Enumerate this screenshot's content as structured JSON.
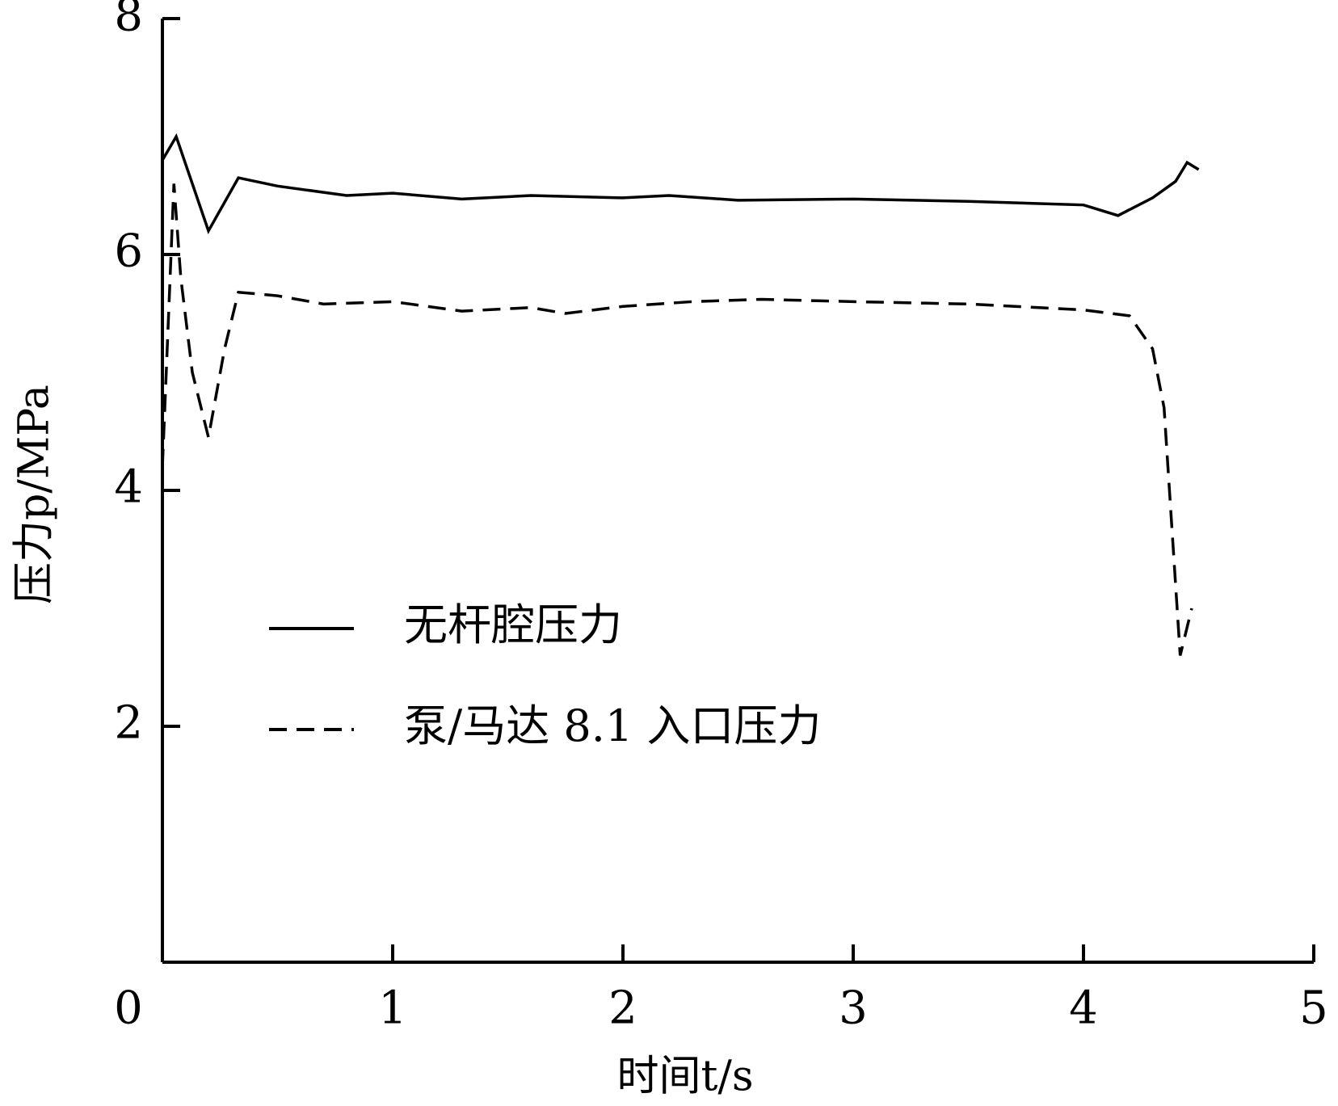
{
  "chart_data": {
    "type": "line",
    "xlabel": "时间t/s",
    "ylabel": "压力p/MPa",
    "xlim": [
      0,
      5
    ],
    "ylim": [
      0,
      8
    ],
    "xticks": [
      0,
      1,
      2,
      3,
      4,
      5
    ],
    "yticks": [
      2,
      4,
      6,
      8
    ],
    "legend": "center-left",
    "series": [
      {
        "name": "无杆腔压力",
        "color": "#000000",
        "style": "solid",
        "x": [
          0,
          0.06,
          0.2,
          0.33,
          0.5,
          0.8,
          1.0,
          1.3,
          1.6,
          2.0,
          2.2,
          2.5,
          3.0,
          3.5,
          4.0,
          4.15,
          4.3,
          4.4,
          4.45,
          4.5
        ],
        "values": [
          6.8,
          7.0,
          6.2,
          6.65,
          6.58,
          6.5,
          6.52,
          6.47,
          6.5,
          6.48,
          6.5,
          6.46,
          6.47,
          6.45,
          6.42,
          6.33,
          6.48,
          6.62,
          6.78,
          6.72
        ]
      },
      {
        "name": "泵/马达 8.1 入口压力",
        "color": "#000000",
        "style": "dashed",
        "x": [
          0,
          0.05,
          0.08,
          0.13,
          0.2,
          0.27,
          0.33,
          0.5,
          0.7,
          1.0,
          1.3,
          1.6,
          1.75,
          2.0,
          2.3,
          2.6,
          3.0,
          3.5,
          4.0,
          4.2,
          4.3,
          4.35,
          4.38,
          4.42,
          4.47
        ],
        "values": [
          4.2,
          6.6,
          5.8,
          5.0,
          4.45,
          5.2,
          5.68,
          5.65,
          5.58,
          5.6,
          5.52,
          5.55,
          5.5,
          5.56,
          5.6,
          5.62,
          5.6,
          5.58,
          5.53,
          5.48,
          5.2,
          4.7,
          3.8,
          2.6,
          3.0
        ]
      }
    ]
  }
}
